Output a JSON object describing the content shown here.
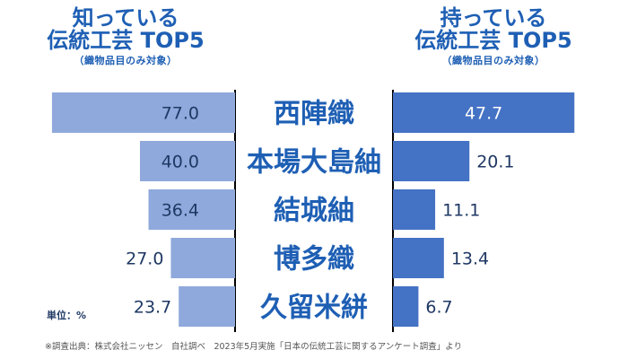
{
  "header_left": {
    "title_line1": "知っている",
    "title_line2": "伝統工芸 TOP5",
    "subtitle": "（織物品目のみ対象）"
  },
  "header_right": {
    "title_line1": "持っている",
    "title_line2": "伝統工芸 TOP5",
    "subtitle": "（織物品目のみ対象）"
  },
  "unit_label": "単位：%",
  "footnote": "※調査出典：株式会社ニッセン　自社調べ　2023年5月実施「日本の伝統工芸に関するアンケート調査」より",
  "colors": {
    "left_bar": "#8fa9dc",
    "right_bar": "#4472c4",
    "category_text": "#1e5fb4",
    "value_text": "#1f3864",
    "value_text_on_dark": "#ffffff",
    "divider": "#000000"
  },
  "chart_data": [
    {
      "type": "bar",
      "orientation": "horizontal",
      "direction": "right-to-left",
      "categories": [
        "西陣織",
        "本場大島紬",
        "結城紬",
        "博多織",
        "久留米絣"
      ],
      "values": [
        77.0,
        40.0,
        36.4,
        27.0,
        23.7
      ],
      "value_labels": [
        "77.0",
        "40.0",
        "36.4",
        "27.0",
        "23.7"
      ],
      "title": "知っている伝統工芸 TOP5",
      "xlim": [
        0,
        80
      ]
    },
    {
      "type": "bar",
      "orientation": "horizontal",
      "direction": "left-to-right",
      "categories": [
        "西陣織",
        "本場大島紬",
        "結城紬",
        "博多織",
        "久留米絣"
      ],
      "values": [
        47.7,
        20.1,
        11.1,
        13.4,
        6.7
      ],
      "value_labels": [
        "47.7",
        "20.1",
        "11.1",
        "13.4",
        "6.7"
      ],
      "title": "持っている伝統工芸 TOP5",
      "xlim": [
        0,
        50
      ]
    }
  ]
}
